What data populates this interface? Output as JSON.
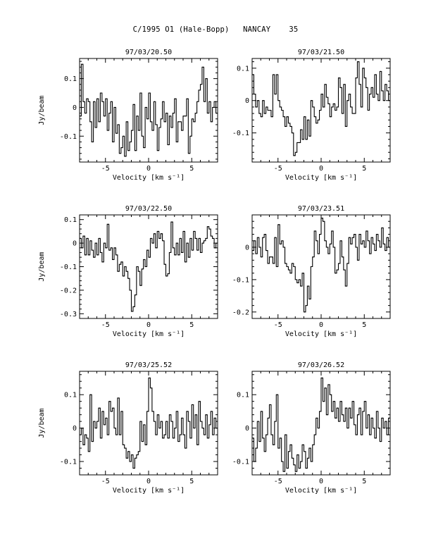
{
  "page": {
    "title": "C/1995 O1 (Hale-Bopp)   NANCAY    35"
  },
  "chart_data": [
    {
      "type": "line",
      "title": "97/03/20.50",
      "xlabel": "Velocity [km s⁻¹]",
      "ylabel": "Jy/beam",
      "xlim": [
        -8,
        8
      ],
      "ylim": [
        -0.19,
        0.17
      ],
      "xticks": [
        -5,
        0,
        5
      ],
      "yticks": [
        0.1,
        0,
        -0.1
      ],
      "ytick_labels": [
        "0.1",
        "0",
        "-0.1"
      ],
      "x": [
        -8,
        -7.8,
        -7.6,
        -7.4,
        -7.2,
        -7,
        -6.8,
        -6.6,
        -6.4,
        -6.2,
        -6,
        -5.8,
        -5.6,
        -5.4,
        -5.2,
        -5,
        -4.8,
        -4.6,
        -4.4,
        -4.2,
        -4,
        -3.8,
        -3.6,
        -3.4,
        -3.2,
        -3,
        -2.8,
        -2.6,
        -2.4,
        -2.2,
        -2,
        -1.8,
        -1.6,
        -1.4,
        -1.2,
        -1,
        -0.8,
        -0.6,
        -0.4,
        -0.2,
        0,
        0.2,
        0.4,
        0.6,
        0.8,
        1,
        1.2,
        1.4,
        1.6,
        1.8,
        2,
        2.2,
        2.4,
        2.6,
        2.8,
        3,
        3.2,
        3.4,
        3.6,
        3.8,
        4,
        4.2,
        4.4,
        4.6,
        4.8,
        5,
        5.2,
        5.4,
        5.6,
        5.8,
        6,
        6.2,
        6.4,
        6.6,
        6.8,
        7,
        7.2,
        7.4,
        7.6,
        7.8
      ],
      "y": [
        -0.03,
        0.15,
        0.02,
        -0.02,
        0.03,
        0.02,
        -0.05,
        -0.12,
        0.02,
        -0.07,
        0.03,
        -0.05,
        0.05,
        0.02,
        -0.03,
        0.03,
        -0.08,
        -0.02,
        0.02,
        -0.12,
        0.0,
        -0.09,
        -0.06,
        -0.16,
        -0.14,
        -0.1,
        -0.17,
        -0.05,
        -0.15,
        -0.12,
        -0.08,
        0.01,
        -0.15,
        -0.03,
        -0.08,
        0.05,
        -0.1,
        -0.14,
        0.0,
        -0.04,
        0.05,
        -0.05,
        -0.08,
        0.02,
        -0.06,
        -0.15,
        -0.07,
        -0.04,
        0.02,
        -0.05,
        -0.02,
        -0.13,
        -0.03,
        -0.07,
        -0.02,
        0.03,
        -0.12,
        -0.05,
        -0.05,
        -0.08,
        -0.03,
        -0.03,
        0.03,
        -0.16,
        -0.1,
        -0.04,
        -0.05,
        -0.02,
        0.02,
        0.06,
        0.08,
        0.14,
        0.02,
        0.1,
        -0.02,
        0.02,
        -0.05,
        0.0,
        0.02,
        -0.02
      ]
    },
    {
      "type": "line",
      "title": "97/03/21.50",
      "xlabel": "Velocity [km s⁻¹]",
      "ylabel": "",
      "xlim": [
        -8,
        8
      ],
      "ylim": [
        -0.19,
        0.13
      ],
      "xticks": [
        -5,
        0,
        5
      ],
      "yticks": [
        0.1,
        0,
        -0.1
      ],
      "ytick_labels": [
        "0.1",
        "0",
        "-0.1"
      ],
      "x": [
        -8,
        -7.8,
        -7.6,
        -7.4,
        -7.2,
        -7,
        -6.8,
        -6.6,
        -6.4,
        -6.2,
        -6,
        -5.8,
        -5.6,
        -5.4,
        -5.2,
        -5,
        -4.8,
        -4.6,
        -4.4,
        -4.2,
        -4,
        -3.8,
        -3.6,
        -3.4,
        -3.2,
        -3,
        -2.8,
        -2.6,
        -2.4,
        -2.2,
        -2,
        -1.8,
        -1.6,
        -1.4,
        -1.2,
        -1,
        -0.8,
        -0.6,
        -0.4,
        -0.2,
        0,
        0.2,
        0.4,
        0.6,
        0.8,
        1,
        1.2,
        1.4,
        1.6,
        1.8,
        2,
        2.2,
        2.4,
        2.6,
        2.8,
        3,
        3.2,
        3.4,
        3.6,
        3.8,
        4,
        4.2,
        4.4,
        4.6,
        4.8,
        5,
        5.2,
        5.4,
        5.6,
        5.8,
        6,
        6.2,
        6.4,
        6.6,
        6.8,
        7,
        7.2,
        7.4,
        7.6,
        7.8
      ],
      "y": [
        0.08,
        0.02,
        -0.02,
        0.0,
        -0.04,
        -0.05,
        0.0,
        -0.04,
        -0.02,
        -0.03,
        -0.03,
        -0.05,
        0.08,
        0.02,
        0.08,
        0.0,
        -0.02,
        -0.03,
        -0.05,
        -0.08,
        -0.05,
        -0.07,
        -0.08,
        -0.1,
        -0.17,
        -0.16,
        -0.13,
        -0.13,
        -0.09,
        -0.12,
        -0.05,
        -0.12,
        -0.06,
        -0.11,
        0.0,
        -0.02,
        -0.05,
        -0.07,
        -0.06,
        -0.03,
        0.02,
        -0.02,
        0.05,
        0.01,
        -0.01,
        -0.05,
        -0.02,
        -0.01,
        -0.03,
        -0.02,
        0.07,
        0.04,
        -0.04,
        0.05,
        -0.08,
        0.0,
        0.02,
        -0.02,
        -0.04,
        -0.04,
        0.07,
        0.12,
        0.05,
        -0.02,
        0.1,
        0.07,
        0.04,
        -0.03,
        0.02,
        0.04,
        0.01,
        0.08,
        0.02,
        0.0,
        0.09,
        0.03,
        0.0,
        0.05,
        0.03,
        0.0
      ]
    },
    {
      "type": "line",
      "title": "97/03/22.50",
      "xlabel": "Velocity [km s⁻¹]",
      "ylabel": "Jy/beam",
      "xlim": [
        -8,
        8
      ],
      "ylim": [
        -0.32,
        0.12
      ],
      "xticks": [
        -5,
        0,
        5
      ],
      "yticks": [
        0.1,
        0,
        -0.1,
        -0.2,
        -0.3
      ],
      "ytick_labels": [
        "0.1",
        "0",
        "-0.1",
        "-0.2",
        "-0.3"
      ],
      "x": [
        -8,
        -7.8,
        -7.6,
        -7.4,
        -7.2,
        -7,
        -6.8,
        -6.6,
        -6.4,
        -6.2,
        -6,
        -5.8,
        -5.6,
        -5.4,
        -5.2,
        -5,
        -4.8,
        -4.6,
        -4.4,
        -4.2,
        -4,
        -3.8,
        -3.6,
        -3.4,
        -3.2,
        -3,
        -2.8,
        -2.6,
        -2.4,
        -2.2,
        -2,
        -1.8,
        -1.6,
        -1.4,
        -1.2,
        -1,
        -0.8,
        -0.6,
        -0.4,
        -0.2,
        0,
        0.2,
        0.4,
        0.6,
        0.8,
        1,
        1.2,
        1.4,
        1.6,
        1.8,
        2,
        2.2,
        2.4,
        2.6,
        2.8,
        3,
        3.2,
        3.4,
        3.6,
        3.8,
        4,
        4.2,
        4.4,
        4.6,
        4.8,
        5,
        5.2,
        5.4,
        5.6,
        5.8,
        6,
        6.2,
        6.4,
        6.6,
        6.8,
        7,
        7.2,
        7.4,
        7.6,
        7.8
      ],
      "y": [
        0.02,
        -0.02,
        0.03,
        -0.05,
        0.02,
        -0.05,
        0.01,
        -0.03,
        -0.06,
        0.0,
        -0.05,
        0.02,
        -0.04,
        -0.08,
        0.0,
        -0.02,
        0.08,
        -0.03,
        -0.02,
        -0.07,
        -0.02,
        -0.05,
        -0.12,
        -0.09,
        -0.08,
        -0.14,
        -0.1,
        -0.12,
        -0.15,
        -0.2,
        -0.29,
        -0.27,
        -0.22,
        -0.1,
        -0.12,
        -0.18,
        -0.11,
        -0.07,
        -0.1,
        -0.03,
        -0.06,
        0.02,
        0.0,
        0.04,
        -0.02,
        0.05,
        0.02,
        0.04,
        0.01,
        -0.09,
        -0.14,
        -0.13,
        -0.04,
        0.09,
        -0.02,
        -0.05,
        0.0,
        -0.05,
        0.02,
        -0.04,
        0.05,
        -0.08,
        0.0,
        -0.06,
        0.02,
        -0.03,
        0.05,
        0.02,
        -0.03,
        0.02,
        -0.04,
        0.0,
        0.01,
        0.02,
        0.07,
        0.06,
        0.03,
        0.02,
        -0.02,
        0.0
      ]
    },
    {
      "type": "line",
      "title": "97/03/23.51",
      "xlabel": "Velocity [km s⁻¹]",
      "ylabel": "",
      "xlim": [
        -8,
        8
      ],
      "ylim": [
        -0.22,
        0.1
      ],
      "xticks": [
        -5,
        0,
        5
      ],
      "yticks": [
        0,
        -0.1,
        -0.2
      ],
      "ytick_labels": [
        "0",
        "-0.1",
        "-0.2"
      ],
      "x": [
        -8,
        -7.8,
        -7.6,
        -7.4,
        -7.2,
        -7,
        -6.8,
        -6.6,
        -6.4,
        -6.2,
        -6,
        -5.8,
        -5.6,
        -5.4,
        -5.2,
        -5,
        -4.8,
        -4.6,
        -4.4,
        -4.2,
        -4,
        -3.8,
        -3.6,
        -3.4,
        -3.2,
        -3,
        -2.8,
        -2.6,
        -2.4,
        -2.2,
        -2,
        -1.8,
        -1.6,
        -1.4,
        -1.2,
        -1,
        -0.8,
        -0.6,
        -0.4,
        -0.2,
        0,
        0.2,
        0.4,
        0.6,
        0.8,
        1,
        1.2,
        1.4,
        1.6,
        1.8,
        2,
        2.2,
        2.4,
        2.6,
        2.8,
        3,
        3.2,
        3.4,
        3.6,
        3.8,
        4,
        4.2,
        4.4,
        4.6,
        4.8,
        5,
        5.2,
        5.4,
        5.6,
        5.8,
        6,
        6.2,
        6.4,
        6.6,
        6.8,
        7,
        7.2,
        7.4,
        7.6,
        7.8
      ],
      "y": [
        -0.01,
        0.02,
        -0.02,
        0.03,
        0.0,
        -0.03,
        0.03,
        0.04,
        -0.01,
        -0.05,
        -0.03,
        -0.03,
        -0.05,
        0.03,
        -0.06,
        0.07,
        0.01,
        0.02,
        0.0,
        -0.05,
        -0.06,
        -0.07,
        -0.08,
        -0.05,
        -0.06,
        -0.1,
        -0.11,
        -0.1,
        -0.12,
        -0.08,
        -0.2,
        -0.18,
        -0.12,
        -0.16,
        -0.06,
        -0.03,
        0.05,
        0.02,
        -0.02,
        0.04,
        0.09,
        0.08,
        0.02,
        0.0,
        -0.02,
        0.01,
        0.05,
        0.0,
        -0.08,
        -0.07,
        -0.05,
        0.02,
        -0.03,
        -0.07,
        -0.12,
        -0.05,
        0.03,
        0.01,
        0.03,
        0.04,
        0.0,
        -0.04,
        0.04,
        0.01,
        0.02,
        0.0,
        0.05,
        0.02,
        -0.02,
        0.03,
        0.01,
        -0.01,
        0.04,
        0.02,
        0.0,
        0.06,
        0.01,
        -0.01,
        0.03,
        0.0
      ]
    },
    {
      "type": "line",
      "title": "97/03/25.52",
      "xlabel": "Velocity [km s⁻¹]",
      "ylabel": "Jy/beam",
      "xlim": [
        -8,
        8
      ],
      "ylim": [
        -0.14,
        0.17
      ],
      "xticks": [
        -5,
        0,
        5
      ],
      "yticks": [
        0.1,
        0,
        -0.1
      ],
      "ytick_labels": [
        "0.1",
        "0",
        "-0.1"
      ],
      "x": [
        -8,
        -7.8,
        -7.6,
        -7.4,
        -7.2,
        -7,
        -6.8,
        -6.6,
        -6.4,
        -6.2,
        -6,
        -5.8,
        -5.6,
        -5.4,
        -5.2,
        -5,
        -4.8,
        -4.6,
        -4.4,
        -4.2,
        -4,
        -3.8,
        -3.6,
        -3.4,
        -3.2,
        -3,
        -2.8,
        -2.6,
        -2.4,
        -2.2,
        -2,
        -1.8,
        -1.6,
        -1.4,
        -1.2,
        -1,
        -0.8,
        -0.6,
        -0.4,
        -0.2,
        0,
        0.2,
        0.4,
        0.6,
        0.8,
        1,
        1.2,
        1.4,
        1.6,
        1.8,
        2,
        2.2,
        2.4,
        2.6,
        2.8,
        3,
        3.2,
        3.4,
        3.6,
        3.8,
        4,
        4.2,
        4.4,
        4.6,
        4.8,
        5,
        5.2,
        5.4,
        5.6,
        5.8,
        6,
        6.2,
        6.4,
        6.6,
        6.8,
        7,
        7.2,
        7.4,
        7.6,
        7.8
      ],
      "y": [
        -0.02,
        0.0,
        -0.05,
        -0.02,
        -0.03,
        -0.07,
        0.1,
        -0.04,
        0.02,
        0.0,
        0.02,
        0.06,
        -0.03,
        0.05,
        0.01,
        0.03,
        -0.02,
        0.08,
        0.05,
        0.06,
        0.0,
        -0.02,
        0.09,
        -0.02,
        0.05,
        -0.05,
        -0.06,
        -0.09,
        -0.07,
        -0.1,
        -0.08,
        -0.12,
        -0.09,
        -0.08,
        -0.07,
        0.02,
        -0.04,
        0.01,
        -0.05,
        0.05,
        0.15,
        0.12,
        0.05,
        0.02,
        -0.02,
        0.04,
        0.0,
        0.02,
        -0.03,
        -0.02,
        0.02,
        -0.03,
        0.04,
        0.02,
        -0.03,
        0.0,
        0.05,
        -0.04,
        -0.02,
        0.03,
        -0.02,
        -0.06,
        0.05,
        0.02,
        -0.03,
        0.07,
        0.0,
        0.04,
        -0.05,
        0.08,
        0.02,
        0.0,
        -0.02,
        0.04,
        -0.03,
        0.01,
        0.05,
        -0.02,
        0.03,
        0.0
      ]
    },
    {
      "type": "line",
      "title": "97/03/26.52",
      "xlabel": "Velocity [km s⁻¹]",
      "ylabel": "",
      "xlim": [
        -8,
        8
      ],
      "ylim": [
        -0.14,
        0.17
      ],
      "xticks": [
        -5,
        0,
        5
      ],
      "yticks": [
        0.1,
        0,
        -0.1
      ],
      "ytick_labels": [
        "0.1",
        "0",
        "-0.1"
      ],
      "x": [
        -8,
        -7.8,
        -7.6,
        -7.4,
        -7.2,
        -7,
        -6.8,
        -6.6,
        -6.4,
        -6.2,
        -6,
        -5.8,
        -5.6,
        -5.4,
        -5.2,
        -5,
        -4.8,
        -4.6,
        -4.4,
        -4.2,
        -4,
        -3.8,
        -3.6,
        -3.4,
        -3.2,
        -3,
        -2.8,
        -2.6,
        -2.4,
        -2.2,
        -2,
        -1.8,
        -1.6,
        -1.4,
        -1.2,
        -1,
        -0.8,
        -0.6,
        -0.4,
        -0.2,
        0,
        0.2,
        0.4,
        0.6,
        0.8,
        1,
        1.2,
        1.4,
        1.6,
        1.8,
        2,
        2.2,
        2.4,
        2.6,
        2.8,
        3,
        3.2,
        3.4,
        3.6,
        3.8,
        4,
        4.2,
        4.4,
        4.6,
        4.8,
        5,
        5.2,
        5.4,
        5.6,
        5.8,
        6,
        6.2,
        6.4,
        6.6,
        6.8,
        7,
        7.2,
        7.4,
        7.6,
        7.8
      ],
      "y": [
        -0.03,
        -0.1,
        -0.06,
        0.02,
        -0.04,
        0.05,
        -0.03,
        -0.07,
        -0.02,
        0.03,
        0.07,
        -0.02,
        -0.05,
        0.02,
        0.1,
        -0.06,
        -0.03,
        -0.1,
        -0.13,
        -0.02,
        -0.12,
        -0.07,
        -0.05,
        -0.09,
        -0.11,
        -0.13,
        -0.08,
        -0.12,
        -0.1,
        -0.05,
        -0.07,
        -0.12,
        -0.09,
        -0.06,
        -0.1,
        -0.05,
        -0.02,
        0.03,
        0.0,
        0.05,
        0.15,
        0.08,
        0.12,
        0.04,
        0.13,
        0.1,
        0.05,
        0.08,
        0.03,
        0.06,
        0.02,
        0.08,
        0.04,
        0.02,
        0.06,
        0.0,
        0.06,
        0.03,
        0.08,
        0.01,
        -0.02,
        0.04,
        0.06,
        -0.02,
        0.05,
        0.08,
        0.0,
        0.04,
        -0.02,
        0.03,
        0.0,
        -0.03,
        0.05,
        0.0,
        -0.04,
        0.03,
        0.0,
        0.02,
        -0.02,
        0.03
      ]
    }
  ]
}
